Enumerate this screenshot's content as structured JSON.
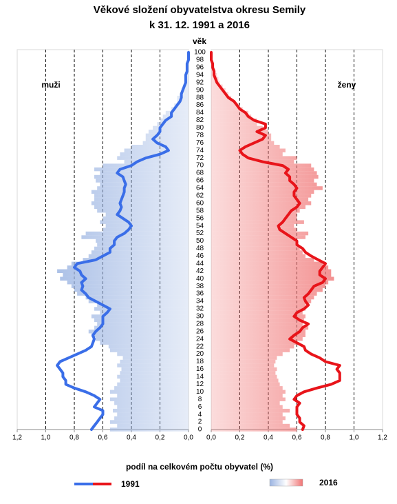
{
  "chart_data": {
    "type": "pyramid",
    "title": [
      "Věkové složení obyvatelstva okresu Semily",
      "k 31. 12. 1991 a 2016"
    ],
    "y_label": "věk",
    "x_label": "podíl na celkovém počtu obyvatel (%)",
    "categories": [
      0,
      null,
      2,
      null,
      4,
      null,
      6,
      null,
      8,
      null,
      10,
      null,
      12,
      null,
      14,
      null,
      16,
      null,
      18,
      null,
      20,
      null,
      22,
      null,
      24,
      null,
      26,
      null,
      28,
      null,
      30,
      null,
      32,
      null,
      34,
      null,
      36,
      null,
      38,
      null,
      40,
      null,
      42,
      null,
      44,
      null,
      46,
      null,
      48,
      null,
      50,
      null,
      52,
      null,
      54,
      null,
      56,
      null,
      58,
      null,
      60,
      null,
      62,
      null,
      64,
      null,
      66,
      null,
      68,
      null,
      70,
      null,
      72,
      null,
      74,
      null,
      76,
      null,
      78,
      null,
      80,
      null,
      82,
      null,
      84,
      null,
      86,
      null,
      88,
      null,
      90,
      null,
      92,
      null,
      94,
      null,
      96,
      null,
      98,
      null,
      100
    ],
    "xlim": [
      0,
      1.2
    ],
    "xticks": [
      {
        "value": 0,
        "label": "0,0"
      },
      {
        "value": 0.2,
        "label": "0,2"
      },
      {
        "value": 0.4,
        "label": "0,4"
      },
      {
        "value": 0.6,
        "label": "0,6"
      },
      {
        "value": 0.8,
        "label": "0,8"
      },
      {
        "value": 1.0,
        "label": "1,0"
      },
      {
        "value": 1.2,
        "label": "1,2"
      }
    ],
    "grid": true,
    "sides": [
      {
        "name": "muži",
        "color": "#3a6ee8",
        "bar_color": "#9bb4e2"
      },
      {
        "name": "ženy",
        "color": "#e8141a",
        "bar_color": "#f07474"
      }
    ],
    "series": [
      {
        "name": "1991",
        "type": "line",
        "values": [
          [
            0.68,
            0.66,
            0.64,
            0.62,
            0.6,
            0.6,
            0.66,
            0.64,
            0.62,
            0.66,
            0.72,
            0.8,
            0.86,
            0.86,
            0.88,
            0.88,
            0.9,
            0.92,
            0.9,
            0.84,
            0.78,
            0.72,
            0.68,
            0.67,
            0.66,
            0.67,
            0.65,
            0.62,
            0.6,
            0.6,
            0.6,
            0.57,
            0.55,
            0.6,
            0.65,
            0.7,
            0.72,
            0.75,
            0.74,
            0.75,
            0.72,
            0.75,
            0.76,
            0.8,
            0.78,
            0.65,
            0.6,
            0.55,
            0.55,
            0.52,
            0.52,
            0.5,
            0.45,
            0.42,
            0.4,
            0.42,
            0.46,
            0.5,
            0.48,
            0.47,
            0.48,
            0.47,
            0.46,
            0.45,
            0.45,
            0.44,
            0.45,
            0.46,
            0.5,
            0.48,
            0.4,
            0.36,
            0.3,
            0.2,
            0.14,
            0.16,
            0.22,
            0.25,
            0.22,
            0.2,
            0.2,
            0.18,
            0.16,
            0.12,
            0.12,
            0.1,
            0.08,
            0.06,
            0.05,
            0.05,
            0.04,
            0.03,
            0.02,
            0.02,
            0.02,
            0.01,
            0.01,
            0.01,
            0,
            0,
            0
          ],
          [
            0.64,
            0.65,
            0.62,
            0.62,
            0.6,
            0.6,
            0.6,
            0.62,
            0.58,
            0.6,
            0.65,
            0.74,
            0.84,
            0.9,
            0.9,
            0.9,
            0.88,
            0.9,
            0.8,
            0.76,
            0.7,
            0.66,
            0.65,
            0.6,
            0.55,
            0.58,
            0.62,
            0.64,
            0.68,
            0.62,
            0.58,
            0.6,
            0.65,
            0.68,
            0.66,
            0.65,
            0.68,
            0.7,
            0.72,
            0.78,
            0.8,
            0.76,
            0.76,
            0.78,
            0.8,
            0.75,
            0.7,
            0.66,
            0.64,
            0.6,
            0.6,
            0.56,
            0.52,
            0.48,
            0.47,
            0.5,
            0.52,
            0.54,
            0.56,
            0.6,
            0.62,
            0.6,
            0.58,
            0.58,
            0.6,
            0.58,
            0.55,
            0.55,
            0.52,
            0.54,
            0.5,
            0.36,
            0.26,
            0.22,
            0.2,
            0.24,
            0.3,
            0.36,
            0.38,
            0.32,
            0.38,
            0.38,
            0.3,
            0.26,
            0.24,
            0.2,
            0.18,
            0.16,
            0.12,
            0.1,
            0.08,
            0.06,
            0.04,
            0.03,
            0.02,
            0.02,
            0.01,
            0.01,
            0,
            0,
            0
          ]
        ]
      },
      {
        "name": "2016",
        "type": "bar",
        "values": [
          [
            0.55,
            0.5,
            0.55,
            0.52,
            0.5,
            0.53,
            0.5,
            0.52,
            0.55,
            0.5,
            0.55,
            0.52,
            0.5,
            0.48,
            0.5,
            0.48,
            0.47,
            0.5,
            0.48,
            0.46,
            0.5,
            0.55,
            0.56,
            0.62,
            0.65,
            0.68,
            0.7,
            0.66,
            0.64,
            0.66,
            0.68,
            0.62,
            0.66,
            0.64,
            0.7,
            0.72,
            0.78,
            0.8,
            0.82,
            0.85,
            0.9,
            0.88,
            0.92,
            0.85,
            0.82,
            0.74,
            0.7,
            0.68,
            0.66,
            0.64,
            0.65,
            0.75,
            0.72,
            0.6,
            0.58,
            0.62,
            0.6,
            0.58,
            0.64,
            0.66,
            0.68,
            0.66,
            0.66,
            0.68,
            0.64,
            0.62,
            0.65,
            0.66,
            0.62,
            0.66,
            0.6,
            0.45,
            0.5,
            0.48,
            0.45,
            0.4,
            0.32,
            0.3,
            0.3,
            0.28,
            0.25,
            0.22,
            0.2,
            0.18,
            0.16,
            0.12,
            0.1,
            0.08,
            0.08,
            0.06,
            0.05,
            0.04,
            0.03,
            0.02,
            0.02,
            0.01,
            0.01,
            0.01,
            0.01,
            0,
            0
          ],
          [
            0.6,
            0.55,
            0.5,
            0.52,
            0.5,
            0.55,
            0.5,
            0.48,
            0.52,
            0.5,
            0.52,
            0.5,
            0.48,
            0.47,
            0.46,
            0.45,
            0.46,
            0.44,
            0.45,
            0.46,
            0.5,
            0.55,
            0.58,
            0.6,
            0.64,
            0.66,
            0.66,
            0.68,
            0.64,
            0.65,
            0.66,
            0.64,
            0.66,
            0.66,
            0.7,
            0.72,
            0.74,
            0.78,
            0.8,
            0.82,
            0.86,
            0.84,
            0.84,
            0.82,
            0.78,
            0.72,
            0.66,
            0.64,
            0.62,
            0.6,
            0.6,
            0.66,
            0.68,
            0.6,
            0.58,
            0.65,
            0.6,
            0.6,
            0.62,
            0.66,
            0.7,
            0.68,
            0.7,
            0.72,
            0.78,
            0.74,
            0.72,
            0.75,
            0.74,
            0.72,
            0.7,
            0.58,
            0.6,
            0.5,
            0.52,
            0.48,
            0.44,
            0.42,
            0.42,
            0.4,
            0.36,
            0.32,
            0.32,
            0.28,
            0.26,
            0.22,
            0.2,
            0.16,
            0.14,
            0.12,
            0.1,
            0.08,
            0.06,
            0.05,
            0.04,
            0.03,
            0.02,
            0.01,
            0.01,
            0.01,
            0
          ]
        ]
      }
    ]
  }
}
